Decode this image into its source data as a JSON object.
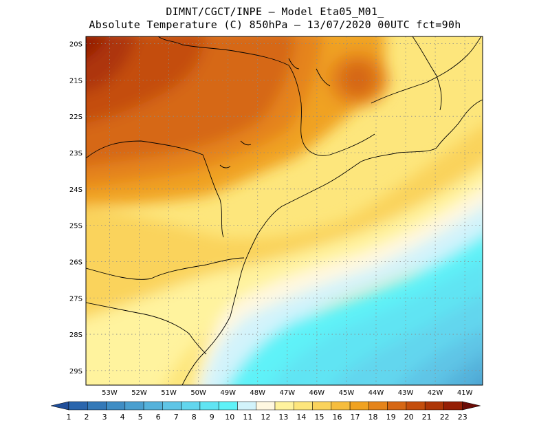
{
  "title_line1": "DIMNT/CGCT/INPE –  Model Eta05_M01_",
  "title_line2": "Absolute Temperature (C) 850hPa –  13/07/2020 00UTC fct=90h",
  "map": {
    "lon_range": [
      -53.8,
      -40.4
    ],
    "lat_range": [
      -29.4,
      -19.8
    ],
    "lat_labels": [
      "20S",
      "21S",
      "22S",
      "23S",
      "24S",
      "25S",
      "26S",
      "27S",
      "28S",
      "29S"
    ],
    "lat_values": [
      -20,
      -21,
      -22,
      -23,
      -24,
      -25,
      -26,
      -27,
      -28,
      -29
    ],
    "lon_labels": [
      "53W",
      "52W",
      "51W",
      "50W",
      "49W",
      "48W",
      "47W",
      "46W",
      "45W",
      "44W",
      "43W",
      "42W",
      "41W"
    ],
    "lon_values": [
      -53,
      -52,
      -51,
      -50,
      -49,
      -48,
      -47,
      -46,
      -45,
      -44,
      -43,
      -42,
      -41
    ]
  },
  "colorbar": {
    "values": [
      "1",
      "2",
      "3",
      "4",
      "5",
      "6",
      "7",
      "8",
      "9",
      "10",
      "11",
      "12",
      "13",
      "14",
      "15",
      "16",
      "17",
      "18",
      "19",
      "20",
      "21",
      "22",
      "23"
    ],
    "colors": [
      "#1f4e9a",
      "#2a65ad",
      "#3479b8",
      "#3f8dc4",
      "#4a9fcf",
      "#55b2db",
      "#5fc5e6",
      "#62d6ee",
      "#60e4f3",
      "#5ef2f8",
      "#d2f3fb",
      "#fff8e1",
      "#fff39e",
      "#fde67c",
      "#fad35c",
      "#f6bd3d",
      "#f0a221",
      "#e5841b",
      "#d66714",
      "#c44e0d",
      "#ad3607",
      "#951f05",
      "#6b0b05"
    ]
  }
}
